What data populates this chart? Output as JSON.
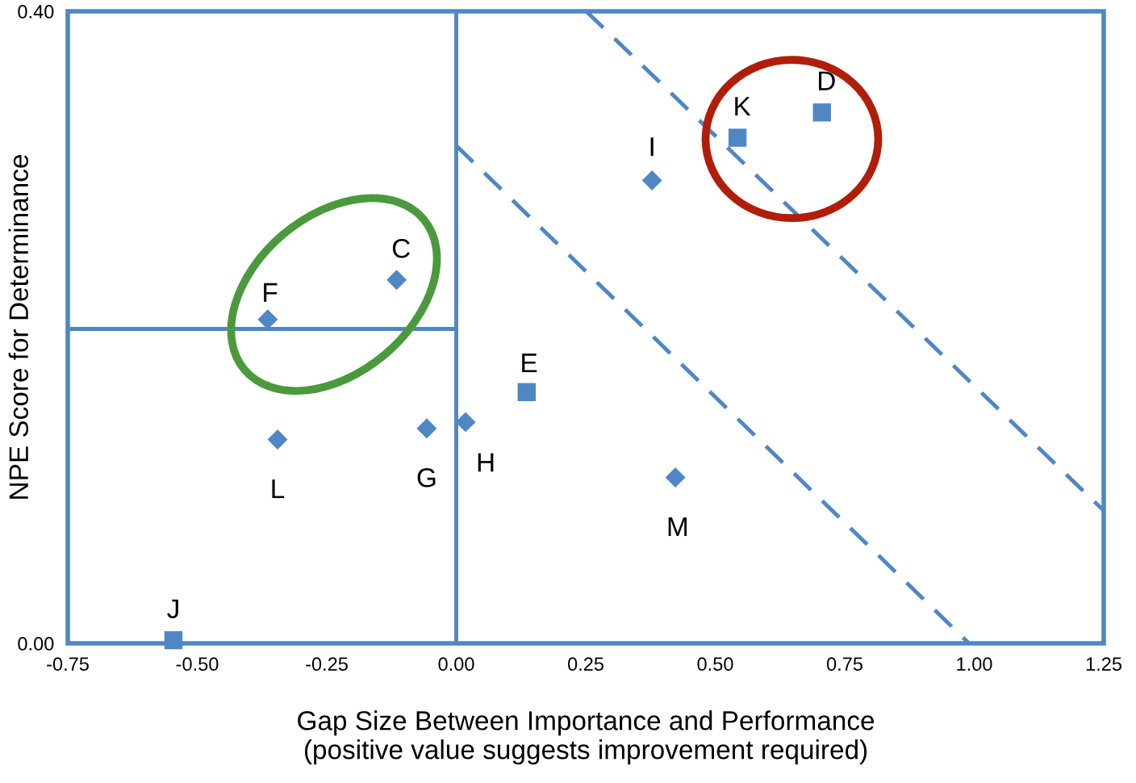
{
  "chart_data": {
    "type": "scatter",
    "xlabel": "Gap Size Between Importance and Performance\n(positive value suggests improvement required)",
    "ylabel": "NPE Score for Determinance",
    "series": [
      {
        "type": "scatter",
        "marker": "diamond",
        "color": "#4f87c5",
        "x": [
          -0.345,
          -0.057,
          0.018,
          0.423,
          -0.364,
          -0.115,
          0.378
        ],
        "values": [
          0.129,
          0.136,
          0.14,
          0.105,
          0.205,
          0.23,
          0.293
        ]
      },
      {
        "type": "scatter",
        "marker": "square",
        "color": "#4f87c5",
        "x": [
          -0.546,
          0.136,
          0.543,
          0.706
        ],
        "values": [
          0.002,
          0.159,
          0.32,
          0.336
        ]
      },
      {
        "type": "line",
        "line_style": "solid",
        "color": "#4f87c5",
        "x": [
          -0.75,
          0.0
        ],
        "values": [
          0.199,
          0.199
        ]
      },
      {
        "type": "line",
        "line_style": "dashed",
        "color": "#4f87c5",
        "x": [
          0.0,
          0.99
        ],
        "values": [
          0.315,
          0.0
        ]
      },
      {
        "type": "line",
        "line_style": "dashed",
        "color": "#4f87c5",
        "x": [
          0.251,
          1.25
        ],
        "values": [
          0.4,
          0.084
        ]
      }
    ],
    "ref_lines": [
      {
        "axis": "x",
        "value": 0.0,
        "color": "#4f87c5",
        "line_style": "solid"
      }
    ],
    "annotations": [
      {
        "text": "J",
        "x": -0.546,
        "y": 0.002
      },
      {
        "text": "L",
        "x": -0.345,
        "y": 0.129
      },
      {
        "text": "G",
        "x": -0.057,
        "y": 0.136
      },
      {
        "text": "H",
        "x": 0.018,
        "y": 0.14
      },
      {
        "text": "E",
        "x": 0.136,
        "y": 0.159
      },
      {
        "text": "M",
        "x": 0.423,
        "y": 0.105
      },
      {
        "text": "F",
        "x": -0.364,
        "y": 0.205
      },
      {
        "text": "C",
        "x": -0.115,
        "y": 0.23
      },
      {
        "text": "I",
        "x": 0.378,
        "y": 0.293
      },
      {
        "text": "K",
        "x": 0.543,
        "y": 0.32
      },
      {
        "text": "D",
        "x": 0.706,
        "y": 0.336
      }
    ],
    "xlim": [
      -0.75,
      1.25
    ],
    "ylim": [
      0.0,
      0.4
    ],
    "xticks": [
      {
        "value": -0.75,
        "label": "-0.75"
      },
      {
        "value": -0.5,
        "label": "-0.50"
      },
      {
        "value": -0.25,
        "label": "-0.25"
      },
      {
        "value": 0.0,
        "label": "0.00"
      },
      {
        "value": 0.25,
        "label": "0.25"
      },
      {
        "value": 0.5,
        "label": "0.50"
      },
      {
        "value": 0.75,
        "label": "0.75"
      },
      {
        "value": 1.0,
        "label": "1.00"
      },
      {
        "value": 1.25,
        "label": "1.25"
      }
    ],
    "yticks": [
      {
        "value": 0.0,
        "label": "0.00"
      },
      {
        "value": 0.4,
        "label": "0.40"
      }
    ],
    "grid": false,
    "legend": false
  }
}
